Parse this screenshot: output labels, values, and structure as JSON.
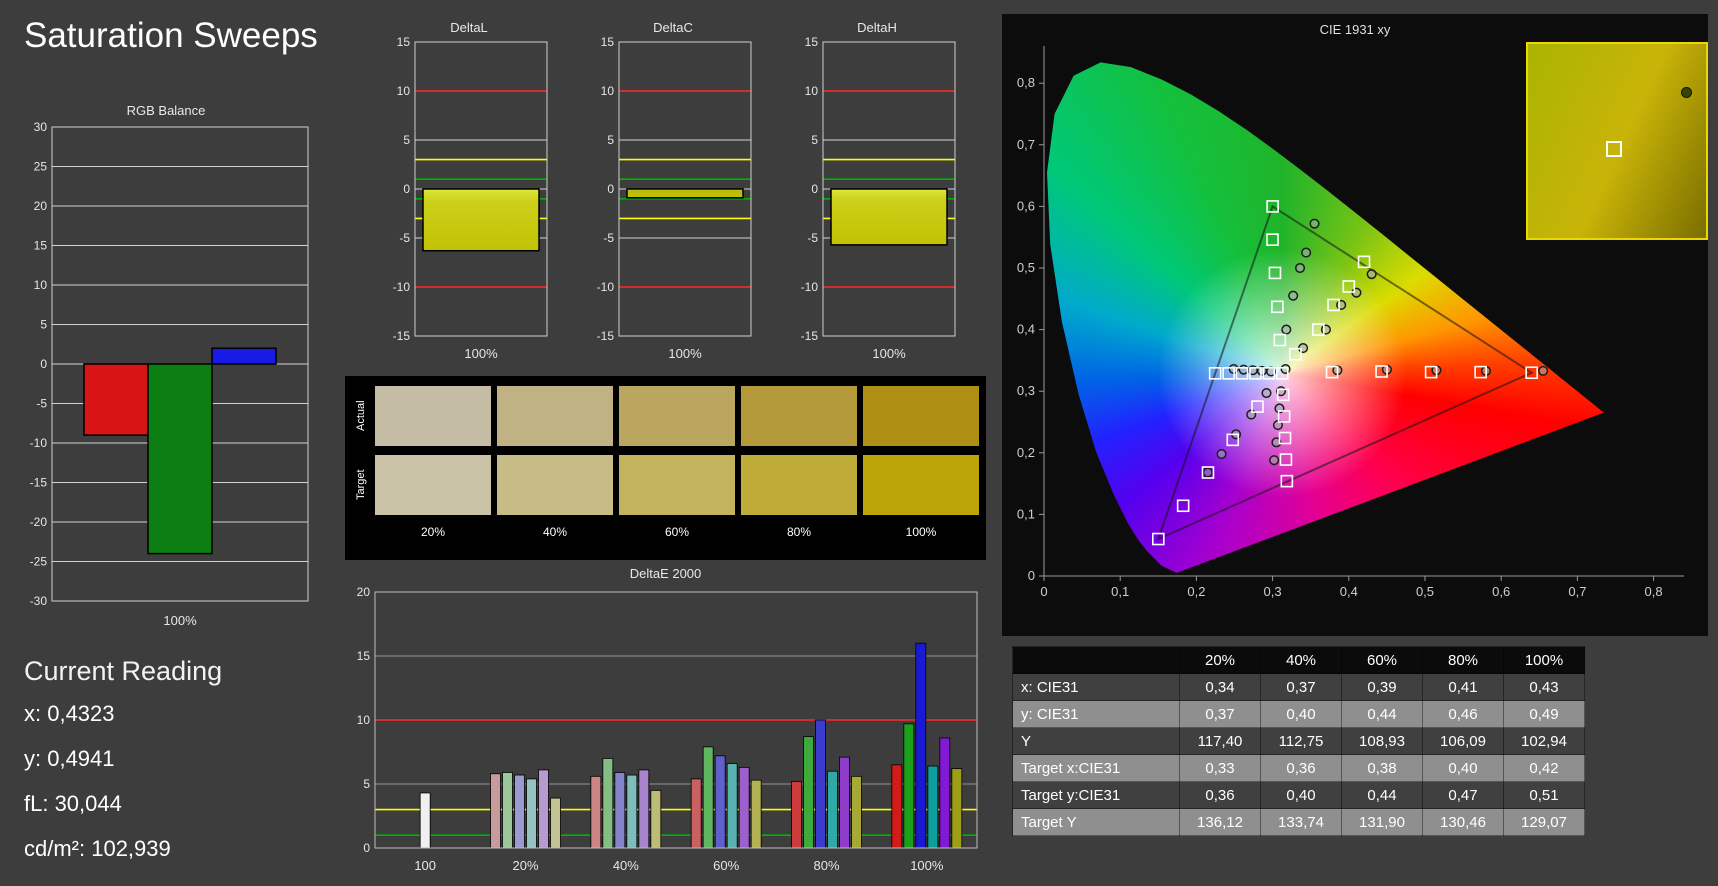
{
  "page": {
    "title": "Saturation Sweeps"
  },
  "current_reading": {
    "heading": "Current Reading",
    "x": "x: 0,4323",
    "y": "y: 0,4941",
    "fl": "fL: 30,044",
    "cdm2": "cd/m²: 102,939"
  },
  "swatches": {
    "row_labels": [
      "Actual",
      "Target"
    ],
    "col_labels": [
      "20%",
      "40%",
      "60%",
      "80%",
      "100%"
    ],
    "actual": [
      "#c5bda3",
      "#c1b285",
      "#bba65f",
      "#b49a3a",
      "#ad8f13"
    ],
    "target": [
      "#cac3a7",
      "#c7bb86",
      "#c3b35e",
      "#beab38",
      "#bca508"
    ]
  },
  "table": {
    "headers": [
      "",
      "20%",
      "40%",
      "60%",
      "80%",
      "100%"
    ],
    "rows": [
      {
        "label": "x: CIE31",
        "values": [
          "0,34",
          "0,37",
          "0,39",
          "0,41",
          "0,43"
        ]
      },
      {
        "label": "y: CIE31",
        "values": [
          "0,37",
          "0,40",
          "0,44",
          "0,46",
          "0,49"
        ]
      },
      {
        "label": "Y",
        "values": [
          "117,40",
          "112,75",
          "108,93",
          "106,09",
          "102,94"
        ]
      },
      {
        "label": "Target x:CIE31",
        "values": [
          "0,33",
          "0,36",
          "0,38",
          "0,40",
          "0,42"
        ]
      },
      {
        "label": "Target y:CIE31",
        "values": [
          "0,36",
          "0,40",
          "0,44",
          "0,47",
          "0,51"
        ]
      },
      {
        "label": "Target Y",
        "values": [
          "136,12",
          "133,74",
          "131,90",
          "130,46",
          "129,07"
        ]
      }
    ]
  },
  "chart_data": [
    {
      "id": "rgb_balance",
      "type": "bar",
      "title": "RGB Balance",
      "ylim": [
        -30,
        30
      ],
      "ytick_step": 5,
      "categories": [
        "100%"
      ],
      "series": [
        {
          "name": "Red",
          "value": -9,
          "color": "#d81414"
        },
        {
          "name": "Green",
          "value": -24,
          "color": "#0d7f12"
        },
        {
          "name": "Blue",
          "value": 2,
          "color": "#1a1ae6"
        }
      ]
    },
    {
      "id": "delta_l",
      "type": "bar",
      "title": "DeltaL",
      "ylim": [
        -15,
        15
      ],
      "ytick_step": 5,
      "categories": [
        "100%"
      ],
      "value": -6.3,
      "bar_color": "#cdd01a",
      "limit_lines": [
        {
          "y": 10,
          "color": "#ff2a2a"
        },
        {
          "y": -10,
          "color": "#ff2a2a"
        },
        {
          "y": 3,
          "color": "#ffff00"
        },
        {
          "y": -3,
          "color": "#ffff00"
        },
        {
          "y": 1,
          "color": "#00b400"
        },
        {
          "y": -1,
          "color": "#00b400"
        }
      ]
    },
    {
      "id": "delta_c",
      "type": "bar",
      "title": "DeltaC",
      "ylim": [
        -15,
        15
      ],
      "ytick_step": 5,
      "categories": [
        "100%"
      ],
      "value": -0.9,
      "bar_color": "#b8b90e",
      "limit_lines": [
        {
          "y": 10,
          "color": "#ff2a2a"
        },
        {
          "y": -10,
          "color": "#ff2a2a"
        },
        {
          "y": 3,
          "color": "#ffff00"
        },
        {
          "y": -3,
          "color": "#ffff00"
        },
        {
          "y": 1,
          "color": "#00b400"
        },
        {
          "y": -1,
          "color": "#00b400"
        }
      ]
    },
    {
      "id": "delta_h",
      "type": "bar",
      "title": "DeltaH",
      "ylim": [
        -15,
        15
      ],
      "ytick_step": 5,
      "categories": [
        "100%"
      ],
      "value": -5.7,
      "bar_color": "#cdd01a",
      "limit_lines": [
        {
          "y": 10,
          "color": "#ff2a2a"
        },
        {
          "y": -10,
          "color": "#ff2a2a"
        },
        {
          "y": 3,
          "color": "#ffff00"
        },
        {
          "y": -3,
          "color": "#ffff00"
        },
        {
          "y": 1,
          "color": "#00b400"
        },
        {
          "y": -1,
          "color": "#00b400"
        }
      ]
    },
    {
      "id": "delta_e2000",
      "type": "grouped_bar",
      "title": "DeltaE 2000",
      "ylim": [
        0,
        20
      ],
      "yticks": [
        0,
        5,
        10,
        15,
        20
      ],
      "limit_lines": [
        {
          "y": 10,
          "color": "#ff2a2a"
        },
        {
          "y": 3,
          "color": "#ffff00"
        },
        {
          "y": 1,
          "color": "#00b400"
        }
      ],
      "groups": [
        {
          "label": "100",
          "bars": [
            {
              "value": 4.3,
              "color": "#f0f0f0"
            }
          ]
        },
        {
          "label": "20%",
          "bars": [
            {
              "value": 5.8,
              "color": "#c79b9b"
            },
            {
              "value": 5.9,
              "color": "#9bc79b"
            },
            {
              "value": 5.7,
              "color": "#9b9bd0"
            },
            {
              "value": 5.4,
              "color": "#96c2c2"
            },
            {
              "value": 6.1,
              "color": "#b79bd0"
            },
            {
              "value": 3.9,
              "color": "#c2c293"
            }
          ]
        },
        {
          "label": "40%",
          "bars": [
            {
              "value": 5.6,
              "color": "#cc8484"
            },
            {
              "value": 7.0,
              "color": "#84bd84"
            },
            {
              "value": 5.9,
              "color": "#8484cc"
            },
            {
              "value": 5.7,
              "color": "#7fbcbc"
            },
            {
              "value": 6.1,
              "color": "#a884cc"
            },
            {
              "value": 4.5,
              "color": "#bcbc74"
            }
          ]
        },
        {
          "label": "60%",
          "bars": [
            {
              "value": 5.4,
              "color": "#cc6060"
            },
            {
              "value": 7.9,
              "color": "#60b560"
            },
            {
              "value": 7.2,
              "color": "#6060cc"
            },
            {
              "value": 6.6,
              "color": "#58b2b2"
            },
            {
              "value": 6.3,
              "color": "#9c60cc"
            },
            {
              "value": 5.3,
              "color": "#b2b254"
            }
          ]
        },
        {
          "label": "80%",
          "bars": [
            {
              "value": 5.2,
              "color": "#cc3c3c"
            },
            {
              "value": 8.7,
              "color": "#3cab3c"
            },
            {
              "value": 10.0,
              "color": "#3c3ccc"
            },
            {
              "value": 6.0,
              "color": "#30a8a8"
            },
            {
              "value": 7.1,
              "color": "#8f3ccc"
            },
            {
              "value": 5.6,
              "color": "#a8a834"
            }
          ]
        },
        {
          "label": "100%",
          "bars": [
            {
              "value": 6.5,
              "color": "#d51a1a"
            },
            {
              "value": 9.7,
              "color": "#1aa01a"
            },
            {
              "value": 16.0,
              "color": "#1a1ad5"
            },
            {
              "value": 6.4,
              "color": "#0f9e9e"
            },
            {
              "value": 8.6,
              "color": "#821ad5"
            },
            {
              "value": 6.2,
              "color": "#9e9e14"
            }
          ]
        }
      ]
    },
    {
      "id": "cie1931",
      "type": "scatter",
      "title": "CIE 1931 xy",
      "xlim": [
        0,
        0.8
      ],
      "ylim": [
        0,
        0.8
      ],
      "xticks": [
        "0",
        "0,1",
        "0,2",
        "0,3",
        "0,4",
        "0,5",
        "0,6",
        "0,7",
        "0,8"
      ],
      "yticks": [
        "0",
        "0,1",
        "0,2",
        "0,3",
        "0,4",
        "0,5",
        "0,6",
        "0,7",
        "0,8"
      ],
      "white_point": [
        0.3127,
        0.329
      ],
      "gamut_triangle": [
        [
          0.64,
          0.33
        ],
        [
          0.3,
          0.6
        ],
        [
          0.15,
          0.06
        ]
      ],
      "targets": [
        [
          0.3127,
          0.329
        ],
        [
          0.378,
          0.331
        ],
        [
          0.443,
          0.332
        ],
        [
          0.508,
          0.331
        ],
        [
          0.573,
          0.331
        ],
        [
          0.64,
          0.33
        ],
        [
          0.3095,
          0.383
        ],
        [
          0.3063,
          0.437
        ],
        [
          0.3031,
          0.492
        ],
        [
          0.2999,
          0.546
        ],
        [
          0.3,
          0.6
        ],
        [
          0.2802,
          0.275
        ],
        [
          0.2477,
          0.221
        ],
        [
          0.2152,
          0.168
        ],
        [
          0.1826,
          0.114
        ],
        [
          0.15,
          0.06
        ],
        [
          0.2951,
          0.329
        ],
        [
          0.2775,
          0.329
        ],
        [
          0.2599,
          0.329
        ],
        [
          0.2423,
          0.329
        ],
        [
          0.2246,
          0.329
        ],
        [
          0.3139,
          0.294
        ],
        [
          0.3151,
          0.259
        ],
        [
          0.3163,
          0.224
        ],
        [
          0.3175,
          0.189
        ],
        [
          0.3187,
          0.154
        ],
        [
          0.33,
          0.36
        ],
        [
          0.36,
          0.4
        ],
        [
          0.38,
          0.44
        ],
        [
          0.4,
          0.47
        ],
        [
          0.42,
          0.51
        ]
      ],
      "measurements": [
        [
          0.317,
          0.336
        ],
        [
          0.385,
          0.334
        ],
        [
          0.45,
          0.335
        ],
        [
          0.515,
          0.334
        ],
        [
          0.58,
          0.333
        ],
        [
          0.655,
          0.333
        ],
        [
          0.318,
          0.4
        ],
        [
          0.327,
          0.455
        ],
        [
          0.336,
          0.5
        ],
        [
          0.344,
          0.525
        ],
        [
          0.355,
          0.572
        ],
        [
          0.292,
          0.297
        ],
        [
          0.272,
          0.262
        ],
        [
          0.252,
          0.23
        ],
        [
          0.233,
          0.198
        ],
        [
          0.215,
          0.168
        ],
        [
          0.298,
          0.332
        ],
        [
          0.286,
          0.333
        ],
        [
          0.274,
          0.334
        ],
        [
          0.262,
          0.335
        ],
        [
          0.249,
          0.336
        ],
        [
          0.311,
          0.3
        ],
        [
          0.309,
          0.272
        ],
        [
          0.307,
          0.245
        ],
        [
          0.305,
          0.217
        ],
        [
          0.302,
          0.188
        ],
        [
          0.34,
          0.37
        ],
        [
          0.37,
          0.4
        ],
        [
          0.39,
          0.44
        ],
        [
          0.41,
          0.46
        ],
        [
          0.43,
          0.49
        ]
      ]
    }
  ]
}
